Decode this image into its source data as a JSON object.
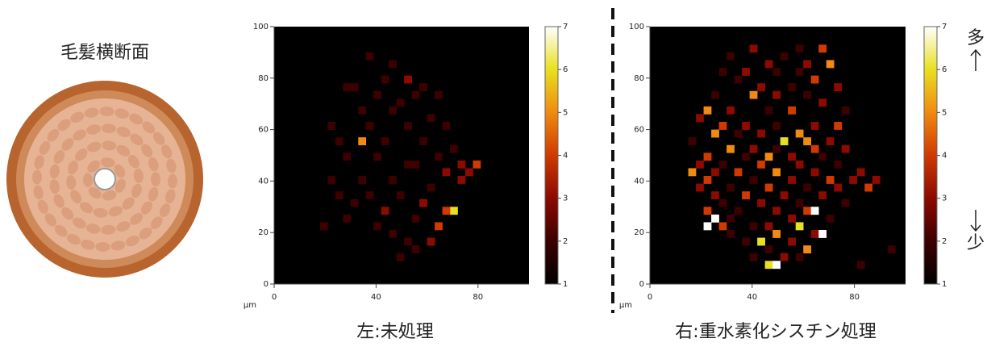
{
  "diagram": {
    "title": "毛髪横断面"
  },
  "colorbar_labels": {
    "high": "多",
    "low": "少"
  },
  "chart_data": [
    {
      "type": "heatmap",
      "caption": "左:未処理",
      "x_label": "μm",
      "xlim": [
        0,
        100
      ],
      "ylim": [
        0,
        100
      ],
      "xticks": [
        0,
        40,
        80
      ],
      "yticks": [
        0,
        20,
        40,
        60,
        80,
        100
      ],
      "clim": [
        1,
        7
      ],
      "cticks": [
        1,
        2,
        3,
        4,
        5,
        6,
        7
      ],
      "colormap": [
        "#000000",
        "#3c0000",
        "#8c0a00",
        "#d03a00",
        "#f08a10",
        "#e8e020",
        "#ffffff"
      ],
      "x": [
        36,
        45,
        27,
        30,
        42,
        51,
        57,
        39,
        48,
        54,
        63,
        33,
        45,
        60,
        21,
        36,
        51,
        66,
        24,
        33,
        42,
        57,
        69,
        27,
        39,
        51,
        54,
        63,
        72,
        78,
        75,
        66,
        21,
        33,
        45,
        60,
        72,
        24,
        36,
        48,
        57,
        69,
        66,
        42,
        30,
        54,
        63,
        45,
        51,
        54,
        60,
        18,
        48,
        27,
        39
      ],
      "y": [
        87,
        84,
        75,
        75,
        78,
        78,
        75,
        72,
        69,
        72,
        72,
        66,
        66,
        63,
        60,
        60,
        60,
        60,
        54,
        54,
        54,
        54,
        51,
        48,
        48,
        45,
        45,
        48,
        45,
        45,
        42,
        42,
        39,
        39,
        39,
        36,
        39,
        33,
        33,
        33,
        30,
        27,
        27,
        27,
        30,
        24,
        21,
        18,
        15,
        12,
        15,
        21,
        9,
        24,
        21
      ],
      "values": [
        2,
        2,
        2,
        2,
        2,
        3,
        2,
        2,
        2,
        2,
        2,
        2,
        2,
        2,
        2,
        2,
        2,
        2,
        2,
        5,
        2,
        2,
        2,
        2,
        2,
        2,
        2,
        2,
        3,
        4,
        3,
        3,
        2,
        2,
        2,
        2,
        3,
        2,
        2,
        2,
        3,
        6,
        4,
        3,
        2,
        2,
        4,
        2,
        2,
        2,
        3,
        2,
        2,
        2,
        2
      ]
    },
    {
      "type": "heatmap",
      "caption": "右:重水素化シスチン処理",
      "x_label": "μm",
      "xlim": [
        0,
        100
      ],
      "ylim": [
        0,
        100
      ],
      "xticks": [
        0,
        40,
        80
      ],
      "yticks": [
        0,
        20,
        40,
        60,
        80,
        100
      ],
      "clim": [
        1,
        7
      ],
      "cticks": [
        1,
        2,
        3,
        4,
        5,
        6,
        7
      ],
      "colormap": [
        "#000000",
        "#3c0000",
        "#8c0a00",
        "#d03a00",
        "#f08a10",
        "#e8e020",
        "#ffffff"
      ],
      "x": [
        39,
        57,
        66,
        51,
        30,
        45,
        60,
        69,
        27,
        36,
        48,
        57,
        63,
        33,
        42,
        54,
        72,
        24,
        39,
        48,
        60,
        66,
        21,
        30,
        45,
        54,
        75,
        18,
        27,
        36,
        48,
        63,
        72,
        24,
        33,
        42,
        57,
        60,
        51,
        69,
        15,
        30,
        39,
        48,
        63,
        75,
        21,
        36,
        45,
        54,
        66,
        18,
        27,
        42,
        57,
        72,
        15,
        24,
        33,
        48,
        63,
        81,
        87,
        21,
        39,
        54,
        69,
        78,
        18,
        30,
        45,
        60,
        72,
        84,
        24,
        36,
        51,
        66,
        27,
        42,
        57,
        75,
        21,
        33,
        48,
        60,
        63,
        24,
        30,
        54,
        69,
        21,
        27,
        39,
        45,
        57,
        63,
        66,
        30,
        48,
        36,
        42,
        54,
        60,
        45,
        51,
        57,
        45,
        48,
        39,
        93,
        81
      ],
      "y": [
        90,
        90,
        90,
        87,
        87,
        84,
        84,
        84,
        81,
        81,
        81,
        81,
        78,
        78,
        75,
        75,
        75,
        72,
        72,
        72,
        72,
        69,
        66,
        66,
        66,
        66,
        66,
        63,
        60,
        60,
        60,
        60,
        60,
        57,
        57,
        57,
        57,
        54,
        54,
        54,
        54,
        51,
        51,
        51,
        51,
        51,
        48,
        48,
        48,
        48,
        48,
        45,
        45,
        45,
        45,
        45,
        42,
        42,
        42,
        42,
        42,
        42,
        39,
        39,
        39,
        39,
        39,
        39,
        36,
        36,
        36,
        36,
        36,
        36,
        33,
        33,
        33,
        33,
        30,
        30,
        30,
        30,
        27,
        27,
        27,
        27,
        27,
        24,
        24,
        24,
        24,
        21,
        21,
        21,
        21,
        21,
        18,
        18,
        18,
        18,
        15,
        15,
        15,
        12,
        12,
        9,
        9,
        6,
        6,
        9,
        12,
        6
      ],
      "values": [
        3,
        2,
        4,
        2,
        2,
        3,
        3,
        5,
        2,
        3,
        2,
        2,
        4,
        2,
        3,
        2,
        3,
        2,
        5,
        3,
        2,
        3,
        5,
        3,
        2,
        4,
        2,
        3,
        4,
        3,
        2,
        3,
        4,
        5,
        2,
        3,
        5,
        5,
        6,
        3,
        2,
        5,
        3,
        2,
        4,
        3,
        4,
        2,
        5,
        3,
        2,
        3,
        2,
        4,
        3,
        2,
        5,
        3,
        4,
        5,
        3,
        3,
        3,
        4,
        2,
        3,
        4,
        3,
        3,
        2,
        4,
        2,
        3,
        4,
        3,
        4,
        3,
        3,
        2,
        3,
        2,
        2,
        4,
        2,
        3,
        4,
        7,
        7,
        2,
        3,
        2,
        7,
        4,
        2,
        3,
        6,
        3,
        7,
        2,
        5,
        2,
        6,
        3,
        5,
        2,
        3,
        2,
        6,
        7,
        2,
        2,
        2
      ]
    }
  ]
}
